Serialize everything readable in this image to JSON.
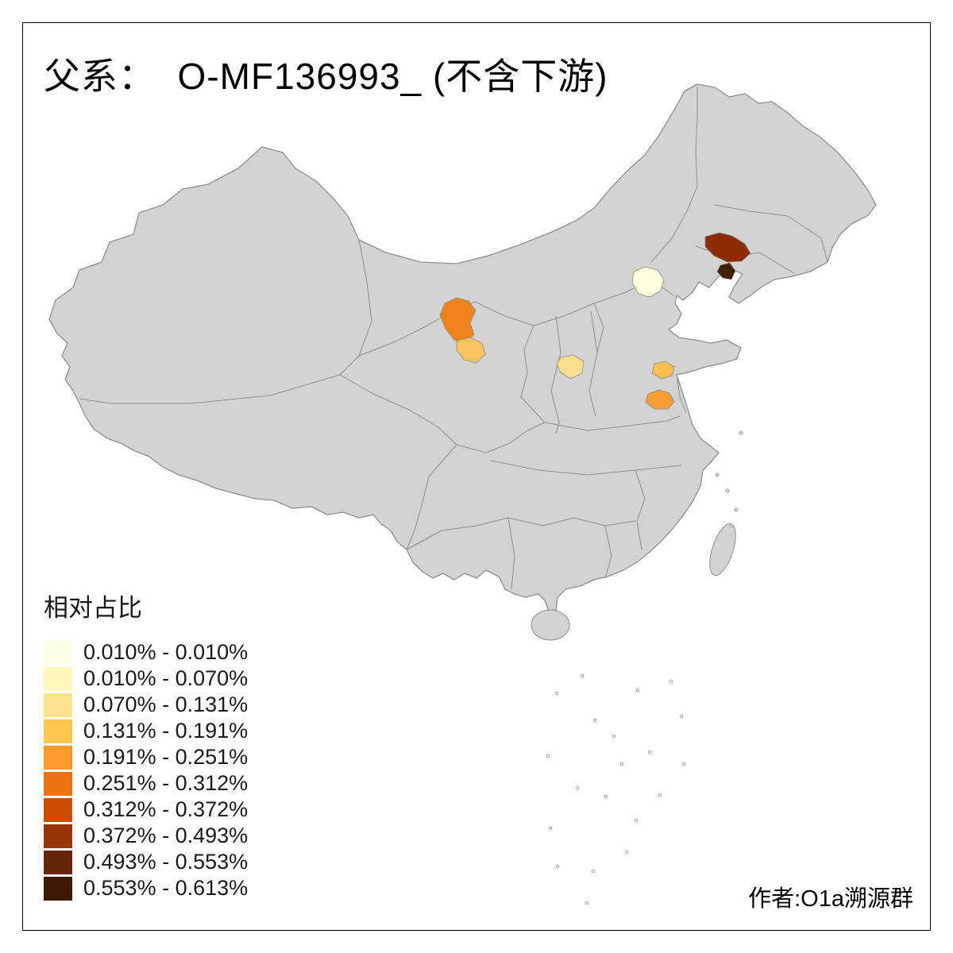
{
  "title": "父系：  O-MF136993_ (不含下游)",
  "legend": {
    "title": "相对占比",
    "items": [
      {
        "label": "0.010% - 0.010%",
        "color": "#FFFFE5"
      },
      {
        "label": "0.010% - 0.070%",
        "color": "#FFF7BC"
      },
      {
        "label": "0.070% - 0.131%",
        "color": "#FEE391"
      },
      {
        "label": "0.131% - 0.191%",
        "color": "#FEC44F"
      },
      {
        "label": "0.191% - 0.251%",
        "color": "#FE9929"
      },
      {
        "label": "0.251% - 0.312%",
        "color": "#EC7014"
      },
      {
        "label": "0.312% - 0.372%",
        "color": "#CC4C02"
      },
      {
        "label": "0.372% - 0.493%",
        "color": "#993404"
      },
      {
        "label": "0.493% - 0.553%",
        "color": "#662506"
      },
      {
        "label": "0.553% - 0.613%",
        "color": "#3E1A02"
      }
    ]
  },
  "attribution": "作者:O1a溯源群",
  "map": {
    "base_fill": "#D3D3D3",
    "border_color": "#8F8F8F",
    "background": "#FFFFFF",
    "highlighted_regions": [
      {
        "id": "hebei-beijing-area",
        "color": "#FFFFE0",
        "value_range": "0.010% - 0.010%"
      },
      {
        "id": "liaoning-central",
        "color": "#8E2C04",
        "value_range": "0.372% - 0.493%"
      },
      {
        "id": "liaoning-south",
        "color": "#401F02",
        "value_range": "0.553% - 0.613%"
      },
      {
        "id": "gansu-upper",
        "color": "#F08418",
        "value_range": "0.251% - 0.312%"
      },
      {
        "id": "gansu-lower",
        "color": "#FDC45F",
        "value_range": "0.131% - 0.191%"
      },
      {
        "id": "shanxi-south",
        "color": "#FADD8E",
        "value_range": "0.070% - 0.131%"
      },
      {
        "id": "shandong-central",
        "color": "#FBBE4F",
        "value_range": "0.131% - 0.191%"
      },
      {
        "id": "shandong-south",
        "color": "#F99D33",
        "value_range": "0.191% - 0.251%"
      }
    ]
  }
}
